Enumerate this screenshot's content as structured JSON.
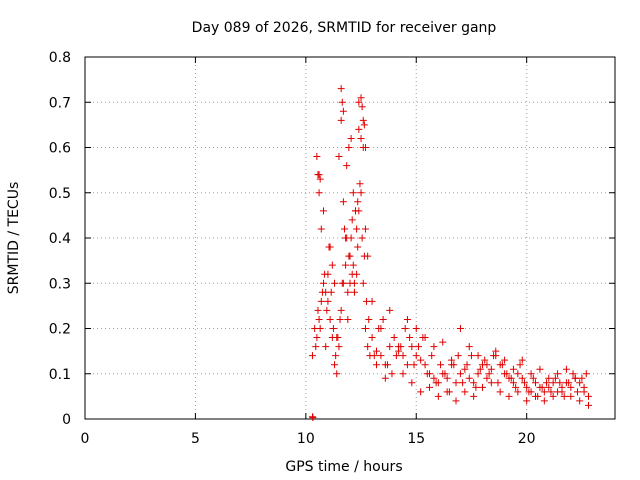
{
  "chart_data": {
    "type": "scatter",
    "title": "Day 089 of 2026, SRMTID for receiver ganp",
    "xlabel": "GPS time / hours",
    "ylabel": "SRMTID / TECUs",
    "xlim": [
      0,
      24
    ],
    "ylim": [
      0,
      0.8
    ],
    "x_ticks": [
      0,
      5,
      10,
      15,
      20
    ],
    "x_tick_labels": [
      "0",
      "5",
      "10",
      "15",
      "20"
    ],
    "y_ticks": [
      0,
      0.1,
      0.2,
      0.3,
      0.4,
      0.5,
      0.6,
      0.7,
      0.8
    ],
    "y_tick_labels": [
      "0",
      "0.1",
      "0.2",
      "0.3",
      "0.4",
      "0.5",
      "0.6",
      "0.7",
      "0.8"
    ],
    "grid": true,
    "marker": "+",
    "colors": {
      "points": "#e00000",
      "grid": "#a0a0a0",
      "axes": "#000000"
    },
    "series": [
      {
        "name": "SRMTID",
        "x": [
          10.3,
          10.4,
          10.5,
          10.6,
          10.7,
          10.8,
          10.9,
          11.0,
          11.1,
          11.2,
          11.3,
          11.4,
          11.5,
          11.6,
          11.7,
          11.8,
          11.9,
          12.0,
          12.1,
          12.2,
          12.3,
          12.4,
          12.5,
          12.6,
          12.7,
          12.8,
          12.9,
          13.0,
          13.2,
          13.4,
          13.6,
          13.8,
          14.0,
          14.2,
          14.4,
          14.6,
          14.8,
          15.0,
          15.2,
          15.4,
          15.6,
          15.8,
          16.0,
          16.2,
          16.4,
          16.6,
          16.8,
          17.0,
          17.2,
          17.4,
          17.6,
          17.8,
          18.0,
          18.2,
          18.4,
          18.6,
          18.8,
          19.0,
          19.2,
          19.4,
          19.6,
          19.8,
          20.0,
          20.2,
          20.4,
          20.6,
          20.8,
          21.0,
          21.2,
          21.4,
          21.6,
          21.8,
          22.0,
          22.2,
          22.4,
          22.6,
          22.8,
          10.45,
          10.55,
          10.65,
          10.75,
          10.85,
          10.95,
          11.05,
          11.15,
          11.25,
          11.35,
          11.45,
          11.55,
          11.65,
          11.75,
          11.85,
          11.95,
          12.05,
          12.15,
          12.25,
          12.35,
          12.45,
          12.55,
          12.65,
          12.75,
          12.85,
          13.1,
          13.3,
          13.5,
          13.7,
          13.9,
          14.1,
          14.3,
          14.5,
          14.7,
          14.9,
          15.1,
          15.3,
          15.5,
          15.7,
          15.9,
          16.1,
          16.3,
          16.5,
          16.7,
          16.9,
          17.1,
          17.3,
          17.5,
          17.7,
          17.9,
          18.1,
          18.3,
          18.5,
          18.7,
          18.9,
          19.1,
          19.3,
          19.5,
          19.7,
          19.9,
          20.1,
          20.3,
          20.5,
          20.7,
          20.9,
          21.1,
          21.3,
          21.5,
          21.7,
          21.9,
          22.1,
          22.3,
          22.5,
          22.7,
          10.5,
          10.7,
          10.9,
          11.1,
          11.3,
          11.5,
          11.7,
          11.9,
          12.1,
          12.3,
          12.5,
          12.7,
          10.6,
          10.8,
          11.0,
          11.2,
          11.4,
          11.6,
          11.8,
          12.0,
          12.2,
          12.4,
          12.6,
          12.8,
          13.0,
          13.4,
          13.8,
          14.2,
          14.6,
          15.0,
          15.4,
          15.8,
          16.2,
          16.6,
          17.0,
          17.4,
          17.8,
          18.2,
          18.6,
          19.0,
          19.4,
          19.8,
          20.2,
          20.6,
          21.0,
          21.4,
          21.8,
          22.2,
          22.6,
          11.6,
          11.65,
          11.7,
          12.4,
          12.5,
          12.55,
          12.6,
          12.65,
          12.7,
          10.55,
          10.6,
          10.65,
          11.85,
          11.95,
          12.05,
          12.15,
          12.25,
          12.35,
          13.2,
          13.6,
          14.4,
          14.8,
          15.2,
          15.6,
          16.0,
          16.4,
          16.8,
          17.2,
          17.6,
          18.0,
          18.4,
          18.8,
          19.2,
          19.6,
          20.0,
          20.4,
          20.8,
          21.2,
          21.6,
          22.0,
          22.4,
          22.8,
          10.3,
          10.32
        ],
        "y": [
          0.14,
          0.2,
          0.18,
          0.22,
          0.26,
          0.3,
          0.28,
          0.32,
          0.22,
          0.18,
          0.12,
          0.1,
          0.16,
          0.24,
          0.3,
          0.34,
          0.28,
          0.36,
          0.32,
          0.3,
          0.42,
          0.46,
          0.5,
          0.3,
          0.2,
          0.16,
          0.14,
          0.18,
          0.15,
          0.14,
          0.12,
          0.16,
          0.18,
          0.15,
          0.14,
          0.12,
          0.16,
          0.14,
          0.13,
          0.12,
          0.1,
          0.09,
          0.08,
          0.1,
          0.09,
          0.12,
          0.08,
          0.1,
          0.11,
          0.09,
          0.08,
          0.1,
          0.12,
          0.09,
          0.11,
          0.14,
          0.12,
          0.1,
          0.09,
          0.08,
          0.1,
          0.09,
          0.07,
          0.06,
          0.08,
          0.07,
          0.06,
          0.07,
          0.08,
          0.06,
          0.07,
          0.08,
          0.07,
          0.09,
          0.08,
          0.06,
          0.05,
          0.16,
          0.24,
          0.2,
          0.28,
          0.32,
          0.24,
          0.38,
          0.28,
          0.2,
          0.14,
          0.18,
          0.22,
          0.3,
          0.42,
          0.4,
          0.36,
          0.4,
          0.34,
          0.46,
          0.38,
          0.52,
          0.4,
          0.36,
          0.26,
          0.22,
          0.14,
          0.2,
          0.22,
          0.12,
          0.1,
          0.14,
          0.16,
          0.2,
          0.18,
          0.12,
          0.16,
          0.18,
          0.1,
          0.14,
          0.08,
          0.12,
          0.1,
          0.06,
          0.12,
          0.14,
          0.08,
          0.12,
          0.14,
          0.07,
          0.11,
          0.13,
          0.1,
          0.14,
          0.08,
          0.12,
          0.1,
          0.09,
          0.07,
          0.12,
          0.08,
          0.06,
          0.09,
          0.05,
          0.07,
          0.08,
          0.06,
          0.09,
          0.08,
          0.05,
          0.08,
          0.1,
          0.06,
          0.09,
          0.1,
          0.58,
          0.42,
          0.16,
          0.38,
          0.3,
          0.58,
          0.48,
          0.22,
          0.44,
          0.32,
          0.62,
          0.42,
          0.54,
          0.46,
          0.26,
          0.34,
          0.18,
          0.66,
          0.4,
          0.3,
          0.28,
          0.7,
          0.6,
          0.36,
          0.26,
          0.2,
          0.24,
          0.16,
          0.22,
          0.2,
          0.18,
          0.16,
          0.17,
          0.13,
          0.2,
          0.16,
          0.14,
          0.12,
          0.15,
          0.13,
          0.11,
          0.13,
          0.1,
          0.11,
          0.09,
          0.1,
          0.11,
          0.09,
          0.07,
          0.73,
          0.7,
          0.68,
          0.64,
          0.71,
          0.69,
          0.66,
          0.65,
          0.6,
          0.54,
          0.5,
          0.53,
          0.56,
          0.6,
          0.62,
          0.5,
          0.46,
          0.48,
          0.12,
          0.09,
          0.1,
          0.08,
          0.06,
          0.07,
          0.05,
          0.06,
          0.04,
          0.06,
          0.05,
          0.07,
          0.08,
          0.06,
          0.05,
          0.06,
          0.04,
          0.05,
          0.04,
          0.05,
          0.06,
          0.05,
          0.04,
          0.03,
          0.005,
          0.003
        ]
      }
    ]
  }
}
